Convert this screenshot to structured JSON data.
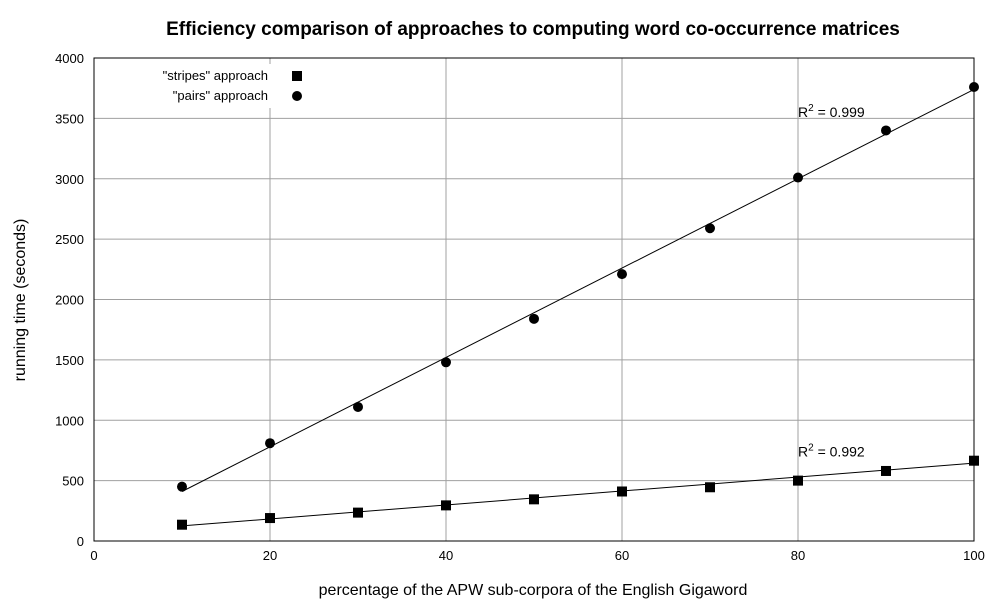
{
  "chart_data": {
    "type": "scatter",
    "title": "Efficiency comparison of approaches to computing word co-occurrence matrices",
    "xlabel": "percentage of the APW sub-corpora of the English Gigaword",
    "ylabel": "running time (seconds)",
    "xlim": [
      0,
      100
    ],
    "ylim": [
      0,
      4000
    ],
    "xticks": [
      0,
      20,
      40,
      60,
      80,
      100
    ],
    "yticks": [
      0,
      500,
      1000,
      1500,
      2000,
      2500,
      3000,
      3500,
      4000
    ],
    "grid": true,
    "legend_position": "top-left",
    "series": [
      {
        "name": "\"stripes\" approach",
        "marker": "square",
        "color": "#000000",
        "x": [
          10,
          20,
          30,
          40,
          50,
          60,
          70,
          80,
          90,
          100
        ],
        "y": [
          135,
          190,
          235,
          295,
          345,
          410,
          445,
          500,
          580,
          665
        ],
        "fit_line": [
          [
            10,
            125
          ],
          [
            100,
            645
          ]
        ],
        "r_squared_label": "R",
        "r_squared_sup": "2",
        "r_squared_value": " = 0.992",
        "r_squared_anchor": [
          80,
          700
        ]
      },
      {
        "name": "\"pairs\" approach",
        "marker": "circle",
        "color": "#000000",
        "x": [
          10,
          20,
          30,
          40,
          50,
          60,
          70,
          80,
          90,
          100
        ],
        "y": [
          450,
          810,
          1110,
          1480,
          1840,
          2210,
          2590,
          3010,
          3400,
          3760
        ],
        "fit_line": [
          [
            10,
            410
          ],
          [
            100,
            3740
          ]
        ],
        "r_squared_label": "R",
        "r_squared_sup": "2",
        "r_squared_value": " = 0.999",
        "r_squared_anchor": [
          80,
          3510
        ]
      }
    ]
  }
}
